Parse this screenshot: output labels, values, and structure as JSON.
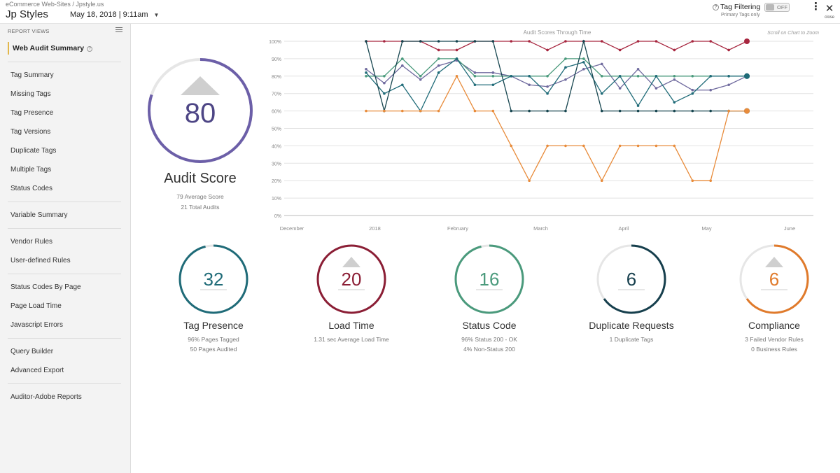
{
  "header": {
    "breadcrumb": "eCommerce Web-Sites / Jpstyle.us",
    "title": "Jp Styles",
    "date": "May 18, 2018 | 9:11am",
    "tag_filtering_label": "Tag Filtering",
    "tag_filtering_sub": "Primary Tags only",
    "toggle_state": "OFF",
    "close_label": "close"
  },
  "sidebar": {
    "heading": "REPORT VIEWS",
    "active_item": "Web Audit Summary",
    "items": [
      "Tag Summary",
      "Missing Tags",
      "Tag Presence",
      "Tag Versions",
      "Duplicate Tags",
      "Multiple Tags",
      "Status Codes",
      "Variable Summary",
      "Vendor Rules",
      "User-defined Rules",
      "Status Codes By Page",
      "Page Load Time",
      "Javascript Errors",
      "Query Builder",
      "Advanced Export",
      "Auditor-Adobe Reports"
    ]
  },
  "audit_score": {
    "value": "80",
    "label": "Audit Score",
    "average": "79 Average Score",
    "total": "21 Total Audits",
    "progress": 0.8,
    "color": "#6c5fa8",
    "trend": "up"
  },
  "metrics": [
    {
      "value": "32",
      "label": "Tag Presence",
      "sub1": "96% Pages Tagged",
      "sub2": "50 Pages Audited",
      "color": "#1f6b78",
      "progress": 0.96,
      "trend": "none"
    },
    {
      "value": "20",
      "label": "Load Time",
      "sub1": "1.31 sec Average Load Time",
      "sub2": "",
      "color": "#8b1e35",
      "progress": 1.0,
      "trend": "up"
    },
    {
      "value": "16",
      "label": "Status Code",
      "sub1": "96% Status 200 - OK",
      "sub2": "4% Non-Status 200",
      "color": "#4a9a7c",
      "progress": 0.96,
      "trend": "none"
    },
    {
      "value": "6",
      "label": "Duplicate Requests",
      "sub1": "1 Duplicate Tags",
      "sub2": "",
      "color": "#163f4d",
      "progress": 0.65,
      "trend": "none"
    },
    {
      "value": "6",
      "label": "Compliance",
      "sub1": "3 Failed Vendor Rules",
      "sub2": "0 Business Rules",
      "color": "#e07a2b",
      "progress": 0.65,
      "trend": "up"
    }
  ],
  "chart_data": {
    "type": "line",
    "title": "Audit Scores Through Time",
    "hint": "Scroll on Chart to Zoom",
    "y_ticks": [
      "0%",
      "10%",
      "20%",
      "30%",
      "40%",
      "50%",
      "60%",
      "70%",
      "80%",
      "90%",
      "100%"
    ],
    "ylim": [
      0,
      100
    ],
    "x_ticks": [
      "December",
      "2018",
      "February",
      "March",
      "April",
      "May",
      "June"
    ],
    "series": [
      {
        "color": "#a7263f",
        "values": [
          100,
          100,
          100,
          100,
          95,
          95,
          100,
          100,
          100,
          100,
          95,
          100,
          100,
          100,
          95,
          100,
          100,
          95,
          100,
          100,
          95,
          100
        ]
      },
      {
        "color": "#6f6a9e",
        "values": [
          84,
          76,
          86,
          78,
          86,
          89,
          82,
          82,
          80,
          75,
          74,
          78,
          84,
          87,
          73,
          84,
          73,
          78,
          72,
          72,
          75,
          80
        ]
      },
      {
        "color": "#4a9a7c",
        "values": [
          80,
          80,
          90,
          80,
          90,
          90,
          80,
          80,
          80,
          80,
          80,
          90,
          90,
          80,
          80,
          80,
          80,
          80,
          80,
          80,
          80,
          80
        ]
      },
      {
        "color": "#1f6b78",
        "values": [
          82,
          70,
          75,
          60,
          82,
          90,
          75,
          75,
          80,
          80,
          70,
          85,
          88,
          70,
          80,
          63,
          80,
          65,
          70,
          80,
          80,
          80
        ]
      },
      {
        "color": "#16454f",
        "values": [
          100,
          60,
          100,
          100,
          100,
          100,
          100,
          100,
          60,
          60,
          60,
          60,
          100,
          60,
          60,
          60,
          60,
          60,
          60,
          60,
          60,
          60
        ]
      },
      {
        "color": "#e88b3a",
        "values": [
          60,
          60,
          60,
          60,
          60,
          80,
          60,
          60,
          40,
          20,
          40,
          40,
          40,
          20,
          40,
          40,
          40,
          40,
          20,
          20,
          60,
          60
        ]
      }
    ]
  }
}
